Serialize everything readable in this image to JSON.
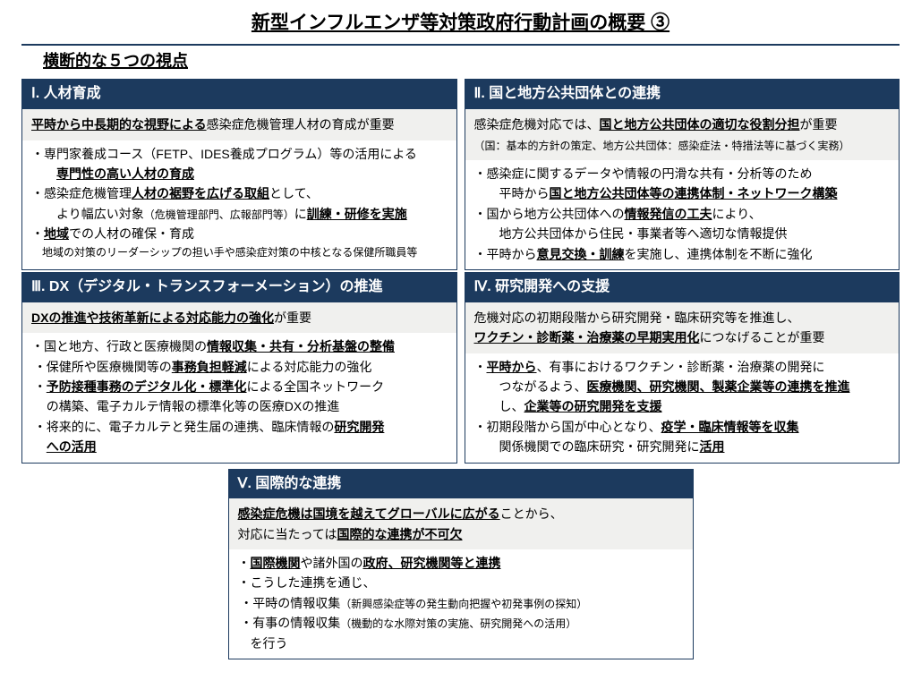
{
  "colors": {
    "header_bg": "#1c3a5e",
    "header_text": "#ffffff",
    "lead_bg": "#f0f0ee",
    "page_bg": "#ffffff",
    "rule": "#1c3a5e",
    "text": "#000000"
  },
  "title": "新型インフルエンザ等対策政府行動計画の概要 ③",
  "subtitle": "横断的な５つの視点",
  "panels": {
    "p1": {
      "header": "Ⅰ. 人材育成",
      "lead_pre": "平時から中長期的な視野による",
      "lead_post": "感染症危機管理人材の育成が重要",
      "b1_pre": "・専門家養成コース（FETP、IDES養成プログラム）等の活用による",
      "b1_em": "専門性の高い人材の育成",
      "b2_pre": "・感染症危機管理",
      "b2_em": "人材の裾野を広げる取組",
      "b2_mid": "として、",
      "b2_line2a": "　より幅広い対象",
      "b2_small": "（危機管理部門、広報部門等）",
      "b2_line2b": "に",
      "b2_em2": "訓練・研修を実施",
      "b3_pre": "・",
      "b3_em": "地域",
      "b3_post": "での人材の確保・育成",
      "b3_note": "　地域の対策のリーダーシップの担い手や感染症対策の中核となる保健所職員等"
    },
    "p2": {
      "header": "Ⅱ. 国と地方公共団体との連携",
      "lead_pre": "感染症危機対応では、",
      "lead_em": "国と地方公共団体の適切な役割分担",
      "lead_post": "が重要",
      "lead_note": "（国：基本的方針の策定、地方公共団体：感染症法・特措法等に基づく実務）",
      "b1_l1": "・感染症に関するデータや情報の円滑な共有・分析等のため",
      "b1_l2a": "　平時から",
      "b1_em": "国と地方公共団体等の連携体制・ネットワーク構築",
      "b2_l1a": "・国から地方公共団体への",
      "b2_em": "情報発信の工夫",
      "b2_l1b": "により、",
      "b2_l2": "　地方公共団体から住民・事業者等へ適切な情報提供",
      "b3_a": "・平時から",
      "b3_em": "意見交換・訓練",
      "b3_b": "を実施し、連携体制を不断に強化"
    },
    "p3": {
      "header": "Ⅲ. DX（デジタル・トランスフォーメーション）の推進",
      "lead_em": "DXの推進や技術革新による対応能力の強化",
      "lead_post": "が重要",
      "b1_a": "・国と地方、行政と医療機関の",
      "b1_em": "情報収集・共有・分析基盤の整備",
      "s1_a": "・保健所や医療機関等の",
      "s1_em": "事務負担軽減",
      "s1_b": "による対応能力の強化",
      "s2_a": "・",
      "s2_em": "予防接種事務のデジタル化・標準化",
      "s2_b": "による全国ネットワーク",
      "s2_l2": "の構築、電子カルテ情報の標準化等の医療DXの推進",
      "s3_a": "・将来的に、電子カルテと発生届の連携、臨床情報の",
      "s3_em": "研究開発",
      "s3_em2": "への活用"
    },
    "p4": {
      "header": "Ⅳ. 研究開発への支援",
      "lead_l1": "危機対応の初期段階から研究開発・臨床研究等を推進し、",
      "lead_em": "ワクチン・診断薬・治療薬の早期実用化",
      "lead_post": "につなげることが重要",
      "b1_a": "・",
      "b1_em1": "平時から",
      "b1_b": "、有事におけるワクチン・診断薬・治療薬の開発に",
      "b1_l2a": "　つながるよう、",
      "b1_em2": "医療機関、研究機関、製薬企業等の連携を推進",
      "b1_l3a": "　し、",
      "b1_em3": "企業等の研究開発を支援",
      "b2_a": "・初期段階から国が中心となり、",
      "b2_em": "疫学・臨床情報等を収集",
      "b2_l2a": "　関係機関での臨床研究・研究開発に",
      "b2_em2": "活用"
    },
    "p5": {
      "header": "Ⅴ. 国際的な連携",
      "lead_em": "感染症危機は国境を越えてグローバルに広がる",
      "lead_mid": "ことから、",
      "lead_l2a": "対応に当たっては",
      "lead_em2": "国際的な連携が不可欠",
      "b1_a": "・",
      "b1_em1": "国際機関",
      "b1_b": "や諸外国の",
      "b1_em2": "政府、研究機関等と連携",
      "b2": "・こうした連携を通じ、",
      "s1_a": "・平時の情報収集",
      "s1_note": "（新興感染症等の発生動向把握や初発事例の探知）",
      "s2_a": "・有事の情報収集",
      "s2_note": "（機動的な水際対策の実施、研究開発への活用）",
      "b3": "　を行う"
    }
  }
}
